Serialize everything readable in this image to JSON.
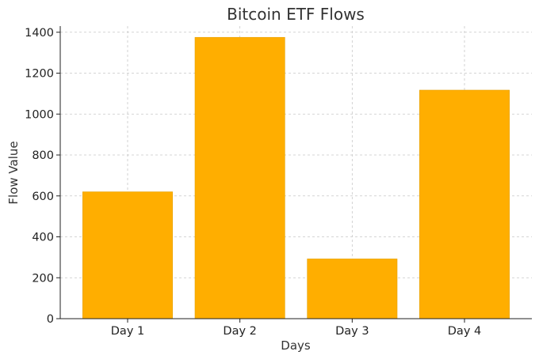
{
  "chart_data": {
    "type": "bar",
    "title": "Bitcoin ETF Flows",
    "xlabel": "Days",
    "ylabel": "Flow Value",
    "categories": [
      "Day 1",
      "Day 2",
      "Day 3",
      "Day 4"
    ],
    "values": [
      620,
      1375,
      292,
      1117
    ],
    "ylim": [
      0,
      1430
    ],
    "yticks": [
      0,
      200,
      400,
      600,
      800,
      1000,
      1200,
      1400
    ],
    "grid": true,
    "bar_color": "#ffae00"
  }
}
